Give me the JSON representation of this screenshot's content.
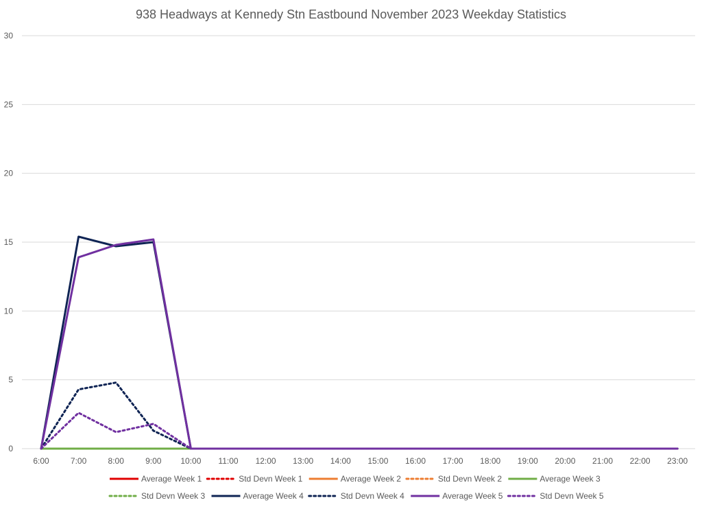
{
  "chart_data": {
    "type": "line",
    "title": "938  Headways at Kennedy Stn Eastbound November 2023 Weekday Statistics",
    "xlabel": "",
    "ylabel": "",
    "x": [
      "6:00",
      "7:00",
      "8:00",
      "9:00",
      "10:00",
      "11:00",
      "12:00",
      "13:00",
      "14:00",
      "15:00",
      "16:00",
      "17:00",
      "18:00",
      "19:00",
      "20:00",
      "21:00",
      "22:00",
      "23:00"
    ],
    "ylim": [
      0,
      30
    ],
    "yticks": [
      0,
      5,
      10,
      15,
      20,
      25,
      30
    ],
    "grid": true,
    "legend_position": "bottom",
    "series": [
      {
        "name": "Average Week 1",
        "color": "#e00000",
        "style": "solid",
        "values": [
          0,
          0,
          0,
          0,
          0,
          0,
          0,
          0,
          0,
          0,
          0,
          0,
          0,
          0,
          0,
          0,
          0,
          0
        ]
      },
      {
        "name": "Std Devn Week 1",
        "color": "#e00000",
        "style": "dotted",
        "values": [
          0,
          0,
          0,
          0,
          0,
          0,
          0,
          0,
          0,
          0,
          0,
          0,
          0,
          0,
          0,
          0,
          0,
          0
        ]
      },
      {
        "name": "Average Week 2",
        "color": "#ed7d31",
        "style": "solid",
        "values": [
          0,
          0,
          0,
          0,
          0,
          0,
          0,
          0,
          0,
          0,
          0,
          0,
          0,
          0,
          0,
          0,
          0,
          0
        ]
      },
      {
        "name": "Std Devn Week 2",
        "color": "#ed7d31",
        "style": "dotted",
        "values": [
          0,
          0,
          0,
          0,
          0,
          0,
          0,
          0,
          0,
          0,
          0,
          0,
          0,
          0,
          0,
          0,
          0,
          0
        ]
      },
      {
        "name": "Average Week 3",
        "color": "#70ad47",
        "style": "solid",
        "values": [
          0,
          0,
          0,
          0,
          0,
          0,
          0,
          0,
          0,
          0,
          0,
          0,
          0,
          0,
          0,
          0,
          0,
          0
        ]
      },
      {
        "name": "Std Devn Week 3",
        "color": "#70ad47",
        "style": "dotted",
        "values": [
          0,
          0,
          0,
          0,
          0,
          0,
          0,
          0,
          0,
          0,
          0,
          0,
          0,
          0,
          0,
          0,
          0,
          0
        ]
      },
      {
        "name": "Average Week 4",
        "color": "#0f2454",
        "style": "solid",
        "values": [
          0,
          15.4,
          14.7,
          15.0,
          0,
          0,
          0,
          0,
          0,
          0,
          0,
          0,
          0,
          0,
          0,
          0,
          0,
          0
        ]
      },
      {
        "name": "Std Devn Week 4",
        "color": "#0f2454",
        "style": "dotted",
        "values": [
          0,
          4.3,
          4.8,
          1.3,
          0,
          0,
          0,
          0,
          0,
          0,
          0,
          0,
          0,
          0,
          0,
          0,
          0,
          0
        ]
      },
      {
        "name": "Average Week 5",
        "color": "#7030a0",
        "style": "solid",
        "values": [
          0,
          13.9,
          14.8,
          15.2,
          0,
          0,
          0,
          0,
          0,
          0,
          0,
          0,
          0,
          0,
          0,
          0,
          0,
          0
        ]
      },
      {
        "name": "Std Devn Week 5",
        "color": "#7030a0",
        "style": "dotted",
        "values": [
          0,
          2.6,
          1.2,
          1.8,
          0,
          0,
          0,
          0,
          0,
          0,
          0,
          0,
          0,
          0,
          0,
          0,
          0,
          0
        ]
      }
    ]
  }
}
